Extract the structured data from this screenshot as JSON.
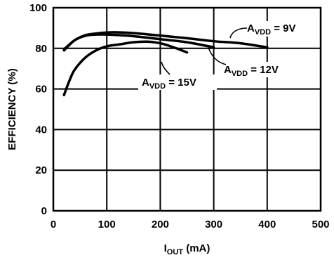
{
  "chart_data": {
    "type": "line",
    "title": "",
    "xlabel": {
      "main": "I",
      "sub": "OUT",
      "unit": " (mA)"
    },
    "ylabel": "EFFICIENCY (%)",
    "xlim": [
      0,
      500
    ],
    "ylim": [
      0,
      100
    ],
    "xticks": [
      "0",
      "100",
      "200",
      "300",
      "400",
      "500"
    ],
    "yticks": [
      "0",
      "20",
      "40",
      "60",
      "80",
      "100"
    ],
    "grid": true,
    "legend": "none",
    "series": [
      {
        "label": {
          "main": "A",
          "sub": "VDD",
          "rest": " = 9V"
        },
        "x": [
          20,
          40,
          60,
          80,
          100,
          120,
          150,
          200,
          250,
          300,
          350,
          400
        ],
        "y": [
          79.5,
          84,
          86.5,
          87.3,
          87.8,
          87.9,
          87.5,
          86.3,
          85,
          83.5,
          82.5,
          80.5
        ]
      },
      {
        "label": {
          "main": "A",
          "sub": "VDD",
          "rest": " = 12V"
        },
        "x": [
          20,
          40,
          60,
          80,
          100,
          150,
          200,
          250,
          300
        ],
        "y": [
          79,
          84,
          86.2,
          86.8,
          86.8,
          86,
          84.5,
          83,
          80.5
        ]
      },
      {
        "label": {
          "main": "A",
          "sub": "VDD",
          "rest": " = 15V"
        },
        "x": [
          20,
          30,
          40,
          60,
          80,
          100,
          125,
          150,
          175,
          200,
          225,
          250
        ],
        "y": [
          57,
          64,
          69.5,
          75.5,
          79,
          81,
          82,
          83,
          83.3,
          82.5,
          80.5,
          78
        ]
      }
    ]
  }
}
